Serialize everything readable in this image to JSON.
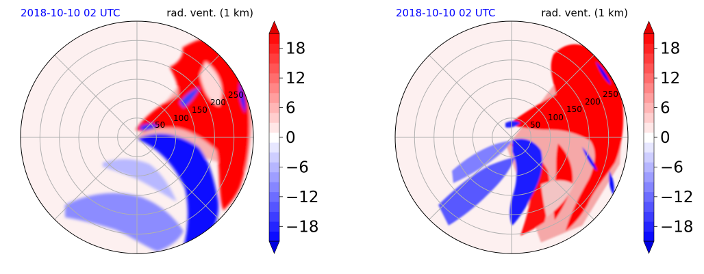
{
  "chart_data": [
    {
      "type": "heatmap",
      "projection": "polar",
      "title_left": "2018-10-10 02 UTC",
      "title_right": "rad. vent. (1 km)",
      "title_left_color": "#0000ff",
      "radial_ticks": [
        "50",
        "100",
        "150",
        "200",
        "250"
      ],
      "radial_tick_values": [
        50,
        100,
        150,
        200,
        250
      ],
      "r_max": 300,
      "colorbar": {
        "ticks": [
          "−18",
          "−12",
          "−6",
          "0",
          "6",
          "12",
          "18"
        ],
        "tick_values": [
          -18,
          -12,
          -6,
          0,
          6,
          12,
          18
        ],
        "vmin": -21,
        "vmax": 21,
        "extend": "both",
        "cmap": "bwr"
      },
      "grid": true
    },
    {
      "type": "heatmap",
      "projection": "polar",
      "title_left": "2018-10-10 02 UTC",
      "title_right": "rad. vent. (1 km)",
      "title_left_color": "#0000ff",
      "radial_ticks": [
        "50",
        "100",
        "150",
        "200",
        "250"
      ],
      "radial_tick_values": [
        50,
        100,
        150,
        200,
        250
      ],
      "r_max": 300,
      "colorbar": {
        "ticks": [
          "−18",
          "−12",
          "−6",
          "0",
          "6",
          "12",
          "18"
        ],
        "tick_values": [
          -18,
          -12,
          -6,
          0,
          6,
          12,
          18
        ],
        "vmin": -21,
        "vmax": 21,
        "extend": "both",
        "cmap": "bwr"
      },
      "grid": true
    }
  ]
}
